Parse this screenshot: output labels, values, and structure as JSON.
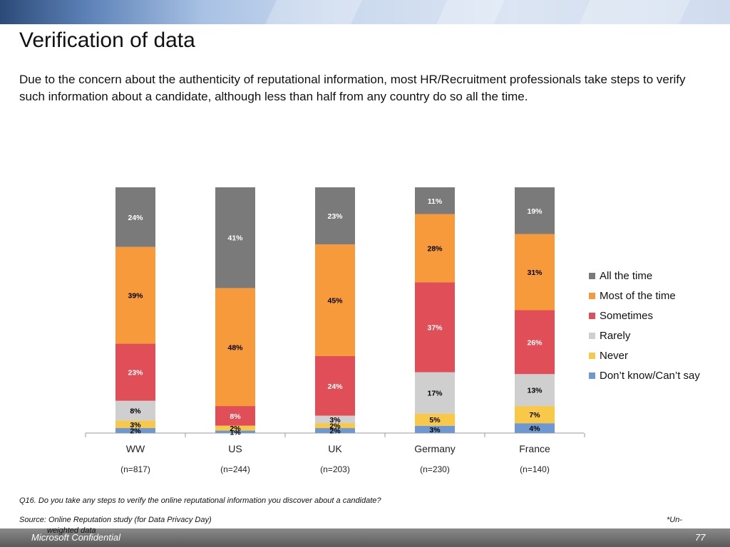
{
  "slide": {
    "title": "Verification of data",
    "subtitle": "Due to the concern about the authenticity of reputational information, most HR/Recruitment professionals take steps to verify such information about a candidate, although less than half from any country do so all the time.",
    "question": "Q16. Do you take any steps to verify the online reputational information you discover about a candidate?",
    "source": "Source: Online Reputation study (for Data Privacy Day)",
    "unweighted_note_part1": "*Un-",
    "unweighted_note_part2": "weighted data",
    "confidential": "Microsoft Confidential",
    "page_number": "77"
  },
  "chart_data": {
    "type": "bar",
    "stacked": true,
    "percent_stacked": true,
    "categories": [
      "WW",
      "US",
      "UK",
      "Germany",
      "France"
    ],
    "sample_sizes": [
      "(n=817)",
      "(n=244)",
      "(n=203)",
      "(n=230)",
      "(n=140)"
    ],
    "series": [
      {
        "name": "Don’t know/Can’t say",
        "values": [
          2,
          1,
          2,
          3,
          4
        ],
        "color": "#6f98d0"
      },
      {
        "name": "Never",
        "values": [
          3,
          2,
          2,
          5,
          7
        ],
        "color": "#f8c948"
      },
      {
        "name": "Rarely",
        "values": [
          8,
          0,
          3,
          17,
          13
        ],
        "color": "#cfcfcf"
      },
      {
        "name": "Sometimes",
        "values": [
          23,
          8,
          24,
          37,
          26
        ],
        "color": "#e04f57"
      },
      {
        "name": "Most of the time",
        "values": [
          39,
          48,
          45,
          28,
          31
        ],
        "color": "#f79a3c"
      },
      {
        "name": "All the time",
        "values": [
          24,
          41,
          23,
          11,
          19
        ],
        "color": "#7a7a7a"
      }
    ],
    "data_labels": [
      [
        "2%",
        "1%",
        "2%",
        "3%",
        "4%"
      ],
      [
        "3%",
        "2%",
        "2%",
        "5%",
        "7%"
      ],
      [
        "8%",
        "",
        "3%",
        "17%",
        "13%"
      ],
      [
        "23%",
        "8%",
        "24%",
        "37%",
        "26%"
      ],
      [
        "39%",
        "48%",
        "45%",
        "28%",
        "31%"
      ],
      [
        "24%",
        "41%",
        "23%",
        "11%",
        "19%"
      ]
    ],
    "label_colors": [
      "#000000",
      "#000000",
      "#000000",
      "#ffffff",
      "#000000",
      "#ffffff"
    ],
    "legend_order": [
      "All the time",
      "Most of the time",
      "Sometimes",
      "Rarely",
      "Never",
      "Don’t know/Can’t say"
    ],
    "legend_position": "right",
    "grid": false
  }
}
